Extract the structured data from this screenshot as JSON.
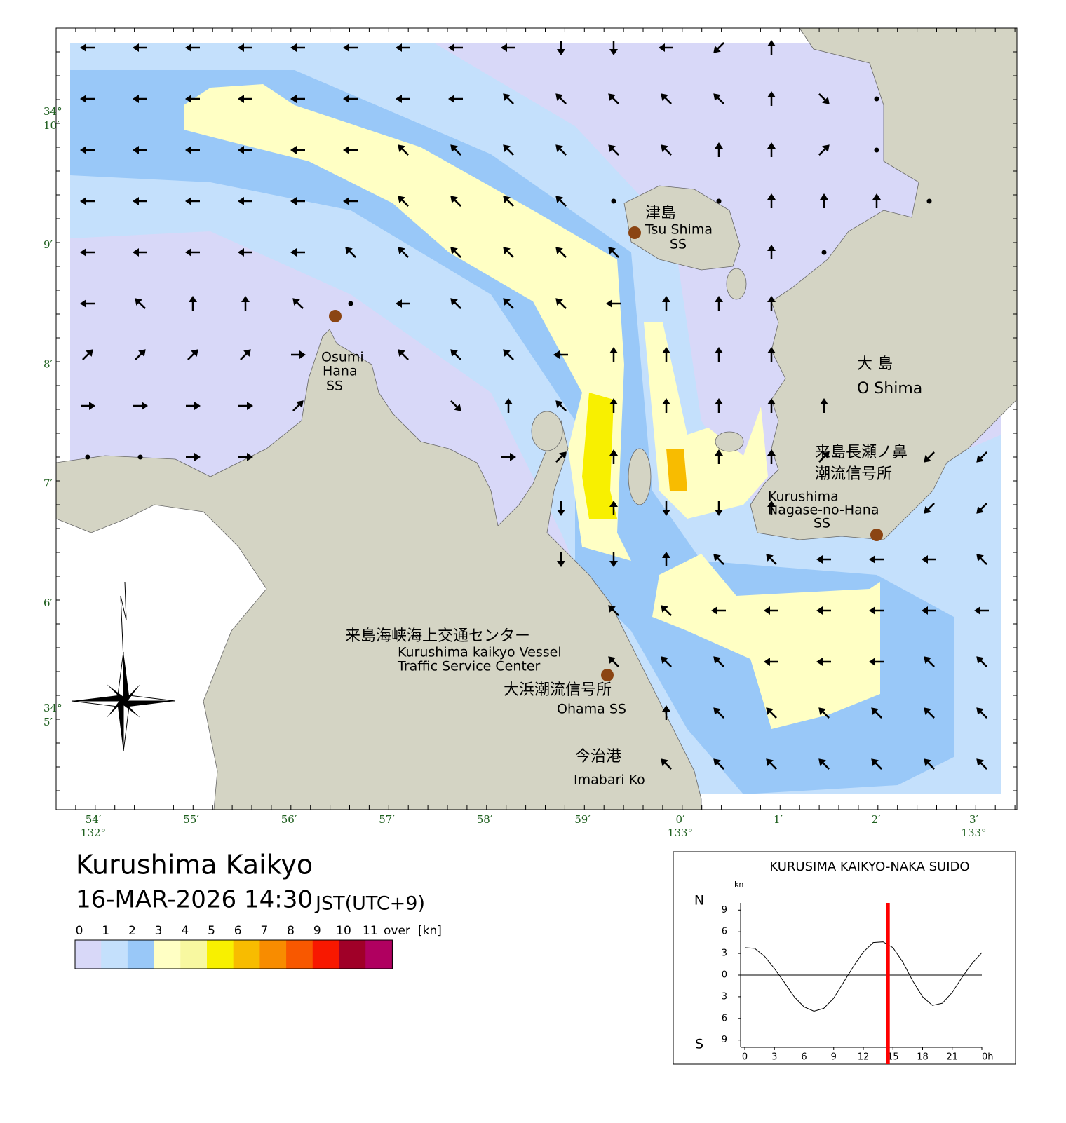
{
  "map": {
    "title": "Kurushima Kaikyo",
    "datetime": "16-MAR-2026 14:30",
    "timezone": "JST(UTC+9)",
    "lat_labels": [
      {
        "degree": "34°",
        "minute": "10′"
      },
      {
        "minute": "9′"
      },
      {
        "minute": "8′"
      },
      {
        "minute": "7′"
      },
      {
        "minute": "6′"
      },
      {
        "degree": "34°",
        "minute": "5′"
      }
    ],
    "lon_labels": [
      {
        "minute": "54′",
        "degree": "132°"
      },
      {
        "minute": "55′"
      },
      {
        "minute": "56′"
      },
      {
        "minute": "57′"
      },
      {
        "minute": "58′"
      },
      {
        "minute": "59′"
      },
      {
        "minute": "0′",
        "degree": "133°"
      },
      {
        "minute": "1′"
      },
      {
        "minute": "2′"
      },
      {
        "minute": "3′",
        "degree": "133°"
      }
    ],
    "places": {
      "tsushima": [
        "津島",
        "Tsu Shima",
        "SS"
      ],
      "osumi": [
        "Osumi",
        "Hana",
        "SS"
      ],
      "oshima": [
        "大 島",
        "O Shima"
      ],
      "nagase": [
        "来島長瀬ノ鼻",
        "潮流信号所",
        "Kurushima",
        "Nagase-no-Hana",
        "SS"
      ],
      "center": [
        "来島海峡海上交通センター",
        "Kurushima kaikyo Vessel",
        "Traffic Service Center"
      ],
      "ohama": [
        "大浜潮流信号所",
        "Ohama SS"
      ],
      "imabari": [
        "今治港",
        "Imabari Ko"
      ]
    },
    "current_arrows": [
      "66666666644650----",
      "666666667777703.--",
      "666666777777001.--",
      "6666667777.-.000.-",
      "66666777777--0.---",
      "67007.67776000----",
      "11112-77760000----",
      "22221--30700000---",
      "..22----210-001-55",
      "---------40440--55",
      "---------440776667",
      "----------77666666",
      "----------77766677",
      "-----------0777777",
      "-----------7777777"
    ],
    "legend": {
      "labels": [
        "0",
        "1",
        "2",
        "3",
        "4",
        "5",
        "6",
        "7",
        "8",
        "9",
        "10",
        "11",
        "over"
      ],
      "unit": "[kn]",
      "colors": [
        "#d8d8f8",
        "#c4e0fc",
        "#99c8f8",
        "#ffffc4",
        "#f8f8a0",
        "#f8f000",
        "#f8bc00",
        "#f88c00",
        "#f85800",
        "#f81800",
        "#a00028",
        "#b00060"
      ]
    }
  },
  "chart_data": {
    "type": "line",
    "title": "KURUSIMA KAIKYO-NAKA SUIDO",
    "y_unit": "kn",
    "north_label": "N",
    "south_label": "S",
    "x": [
      0,
      1,
      2,
      3,
      4,
      5,
      6,
      7,
      8,
      9,
      10,
      11,
      12,
      13,
      14,
      15,
      16,
      17,
      18,
      19,
      20,
      21,
      22,
      23,
      24
    ],
    "series": [
      {
        "color": "#000000",
        "values": [
          3.8,
          3.7,
          2.6,
          0.9,
          -1.0,
          -3.0,
          -4.4,
          -5.0,
          -4.6,
          -3.2,
          -1.0,
          1.2,
          3.2,
          4.5,
          4.6,
          3.8,
          1.8,
          -0.8,
          -3.0,
          -4.2,
          -3.9,
          -2.4,
          -0.3,
          1.6,
          3.1
        ]
      }
    ],
    "current_hour": 14.5,
    "current_color": "#ff0000",
    "xlim": [
      0,
      24
    ],
    "ylim": [
      -10,
      10
    ],
    "xticks": [
      0,
      3,
      6,
      9,
      12,
      15,
      18,
      21,
      {
        "value": 24,
        "label": "0h"
      }
    ],
    "yticks": [
      {
        "value": 9,
        "label": "9"
      },
      {
        "value": 6,
        "label": "6"
      },
      {
        "value": 3,
        "label": "3"
      },
      0,
      {
        "value": -3,
        "label": "3"
      },
      {
        "value": -6,
        "label": "6"
      },
      {
        "value": -9,
        "label": "9"
      }
    ]
  }
}
